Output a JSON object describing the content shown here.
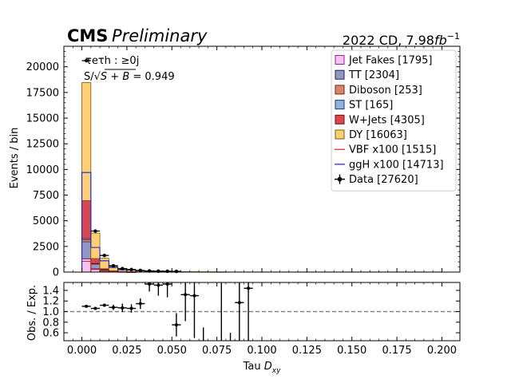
{
  "header": {
    "cms_label": "CMS",
    "preliminary_label": "Preliminary",
    "lumi_prefix": "2022 CD, 7.98",
    "lumi_unit": "fb",
    "lumi_exp": "−1"
  },
  "annotations": {
    "category_line": "τeτh : ≥0j",
    "significance_prefix": "S/√",
    "significance_radicand": "S + B",
    "significance_value": " = 0.949"
  },
  "chart_data": [
    {
      "type": "bar",
      "subtype": "stacked-histogram",
      "ylabel": "Events / bin",
      "xlim": [
        -0.01,
        0.21
      ],
      "ylim": [
        0,
        22000
      ],
      "bin_width": 0.005,
      "bin_edges_start": 0.0,
      "yticks": [
        "0",
        "2500",
        "5000",
        "7500",
        "10000",
        "12500",
        "15000",
        "17500",
        "20000"
      ],
      "ytick_values": [
        0,
        2500,
        5000,
        7500,
        10000,
        12500,
        15000,
        17500,
        20000
      ],
      "stack_order_bottom_to_top": [
        "Jet Fakes",
        "TT",
        "Diboson",
        "ST",
        "W+Jets",
        "DY"
      ],
      "series": [
        {
          "name": "Jet Fakes",
          "legend": "Jet Fakes [1795]",
          "color": "#f6c3f1",
          "edge": "#9b1fa6",
          "values": [
            1300,
            320,
            100,
            45,
            20,
            10
          ]
        },
        {
          "name": "TT",
          "legend": "TT [2304]",
          "color": "#9497c0",
          "edge": "#1f1f60",
          "values": [
            1650,
            450,
            130,
            50,
            15,
            9
          ]
        },
        {
          "name": "Diboson",
          "legend": "Diboson [253]",
          "color": "#d9846b",
          "edge": "#6e2a14",
          "values": [
            190,
            40,
            12,
            6,
            3,
            2
          ]
        },
        {
          "name": "ST",
          "legend": "ST [165]",
          "color": "#8fb2dd",
          "edge": "#1f3e6e",
          "values": [
            120,
            30,
            8,
            4,
            2,
            1
          ]
        },
        {
          "name": "W+Jets",
          "legend": "W+Jets [4305]",
          "color": "#d8474b",
          "edge": "#6e0d10",
          "values": [
            3700,
            480,
            80,
            25,
            12,
            8
          ]
        },
        {
          "name": "DY",
          "legend": "DY [16063]",
          "color": "#fcce75",
          "edge": "#7a5a10",
          "values": [
            11500,
            2480,
            1020,
            420,
            220,
            180,
            95,
            70,
            60,
            50,
            45,
            40,
            35,
            30,
            25,
            20
          ]
        }
      ],
      "signal_lines": [
        {
          "name": "VBF x100",
          "legend": "VBF x100 [1515]",
          "color": "#e02020",
          "values": [
            1050,
            260,
            100,
            40,
            20,
            15
          ]
        },
        {
          "name": "ggH x100",
          "legend": "ggH x100 [14713]",
          "color": "#2020c8",
          "values": [
            9700,
            2400,
            1100,
            450,
            220,
            200
          ]
        }
      ],
      "data_series": {
        "name": "Data",
        "legend": "Data [27620]",
        "x": [
          0.0025,
          0.0075,
          0.0125,
          0.0175,
          0.0225,
          0.0275,
          0.0325,
          0.0375,
          0.0425,
          0.0475,
          0.0525
        ],
        "values": [
          20600,
          4000,
          1620,
          620,
          340,
          250,
          160,
          110,
          90,
          80,
          70
        ]
      },
      "legend_position": "top-right"
    },
    {
      "type": "scatter",
      "subtype": "ratio-errorbars",
      "xlabel_prefix": "Tau ",
      "xlabel_var": "D",
      "xlabel_sub": "xy",
      "ylabel": "Obs. / Exp.",
      "xlim": [
        -0.01,
        0.21
      ],
      "ylim": [
        0.45,
        1.55
      ],
      "xticks": [
        "0.000",
        "0.025",
        "0.050",
        "0.075",
        "0.100",
        "0.125",
        "0.150",
        "0.175",
        "0.200"
      ],
      "xtick_values": [
        0.0,
        0.025,
        0.05,
        0.075,
        0.1,
        0.125,
        0.15,
        0.175,
        0.2
      ],
      "yticks": [
        "0.6",
        "0.8",
        "1.0",
        "1.2",
        "1.4"
      ],
      "ytick_values": [
        0.6,
        0.8,
        1.0,
        1.2,
        1.4
      ],
      "reference_line": 1.0,
      "points": [
        {
          "x": 0.0025,
          "y": 1.1,
          "err": 0.01
        },
        {
          "x": 0.0075,
          "y": 1.06,
          "err": 0.02
        },
        {
          "x": 0.0125,
          "y": 1.12,
          "err": 0.03
        },
        {
          "x": 0.0175,
          "y": 1.08,
          "err": 0.05
        },
        {
          "x": 0.0225,
          "y": 1.07,
          "err": 0.08
        },
        {
          "x": 0.0275,
          "y": 1.06,
          "err": 0.08
        },
        {
          "x": 0.0325,
          "y": 1.15,
          "err": 0.1
        },
        {
          "x": 0.0375,
          "y": 1.52,
          "err": 0.14
        },
        {
          "x": 0.0425,
          "y": 1.5,
          "err": 0.2
        },
        {
          "x": 0.0475,
          "y": 1.52,
          "err": 0.25
        },
        {
          "x": 0.0525,
          "y": 0.75,
          "err": 0.22
        },
        {
          "x": 0.0575,
          "y": 1.32,
          "err": 0.5
        },
        {
          "x": 0.0625,
          "y": 1.3,
          "err": 0.8
        },
        {
          "x": 0.0675,
          "y": null,
          "err": 0.4,
          "band": [
            0.45,
            0.7
          ]
        },
        {
          "x": 0.0775,
          "y": null,
          "err": 0.0,
          "band": [
            0.45,
            1.55
          ]
        },
        {
          "x": 0.0825,
          "y": null,
          "err": 0.0,
          "band": [
            0.45,
            0.6
          ]
        },
        {
          "x": 0.0875,
          "y": 1.17,
          "err": 0.0,
          "band": [
            0.45,
            1.55
          ]
        },
        {
          "x": 0.0925,
          "y": 1.44,
          "err": 0.0,
          "band": [
            0.45,
            1.55
          ]
        }
      ]
    }
  ]
}
